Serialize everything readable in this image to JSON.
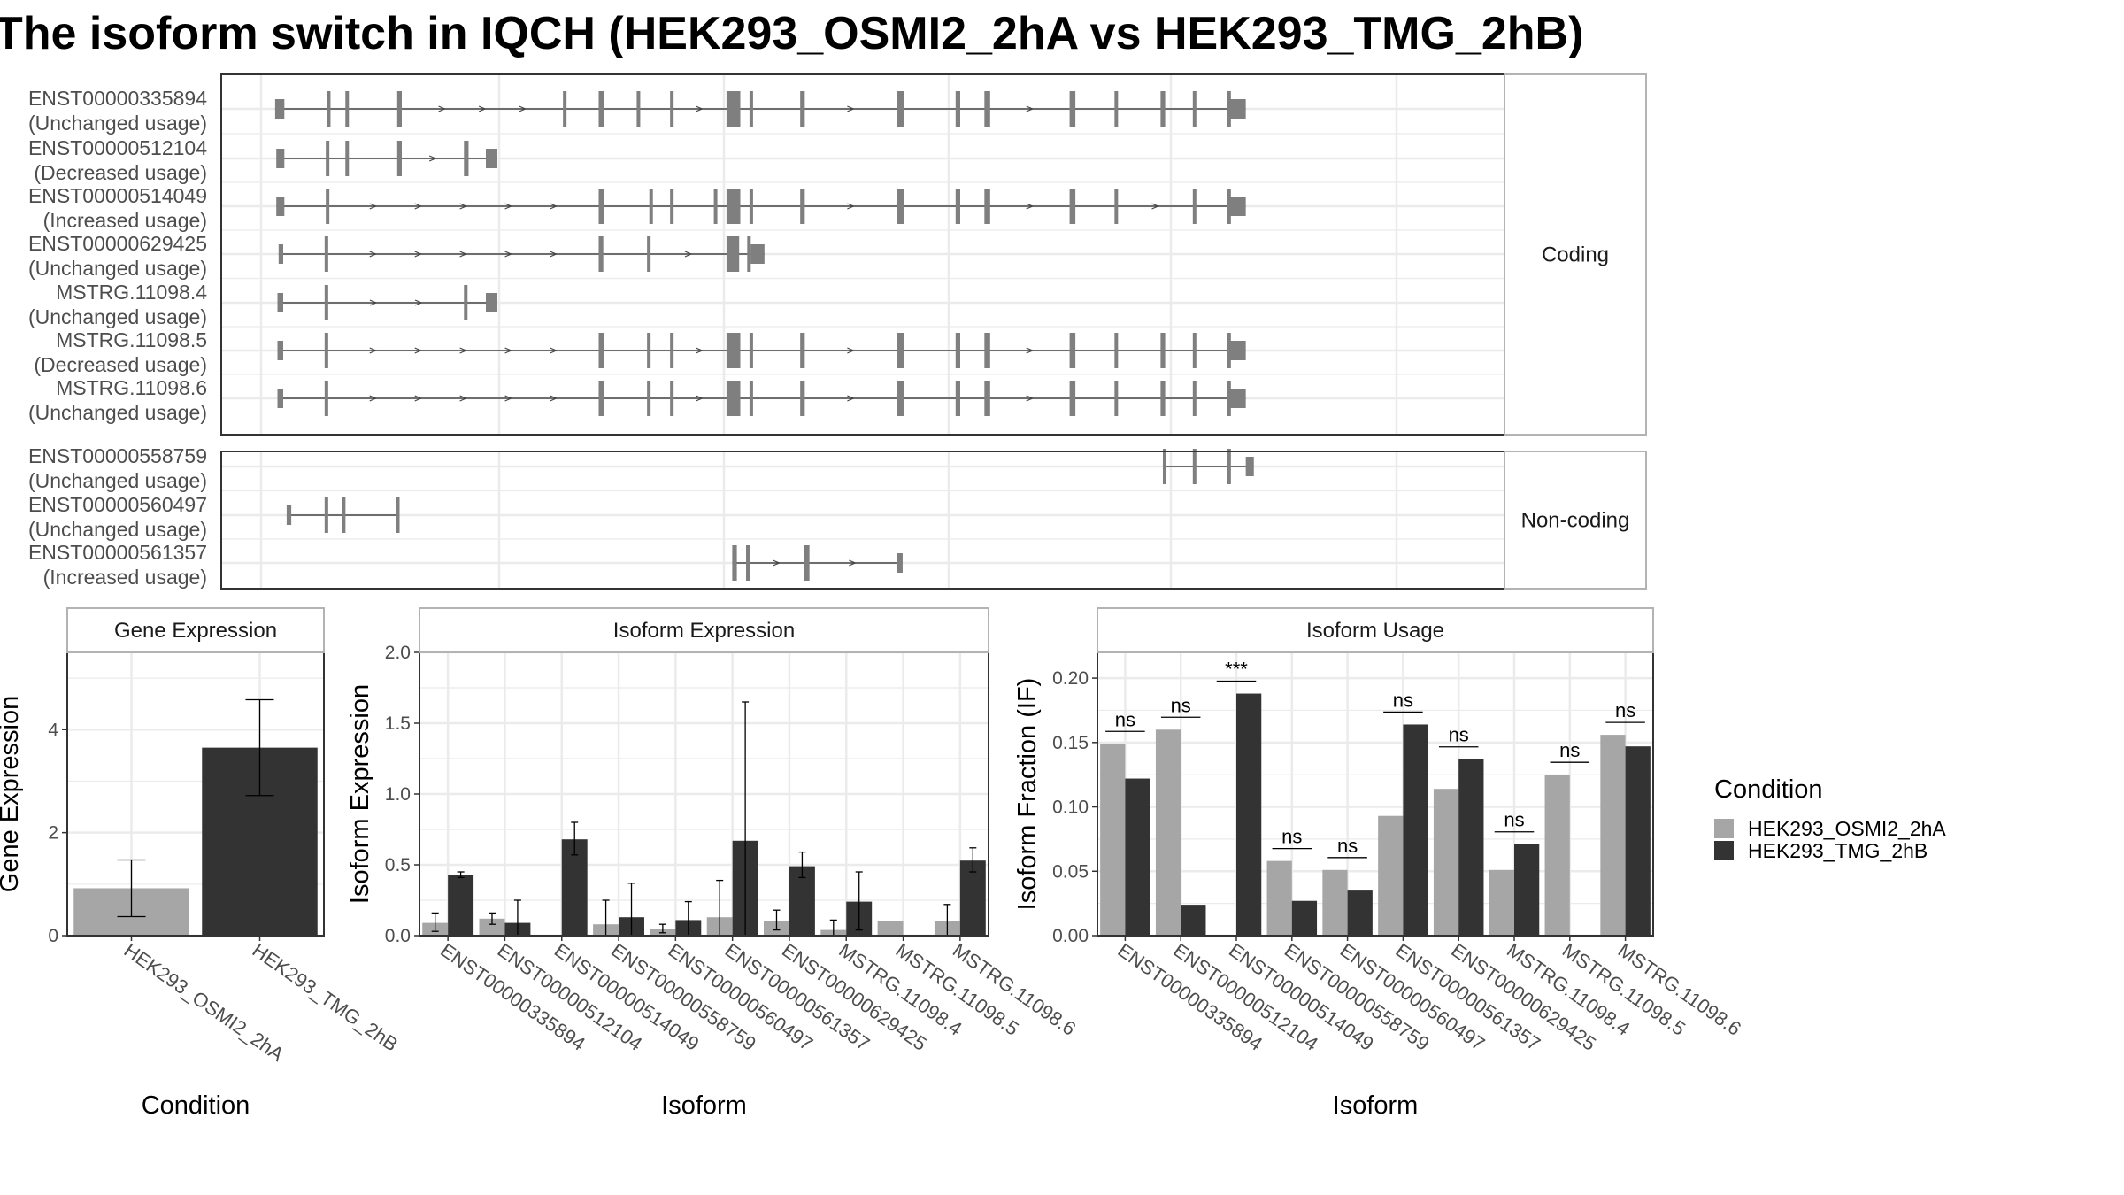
{
  "title": "The isoform switch in IQCH (HEK293_OSMI2_2hA vs HEK293_TMG_2hB)",
  "colors": {
    "condition_a": "#a6a6a6",
    "condition_b": "#333333",
    "structure": "#7f7f7f",
    "panel_border": "#333333",
    "strip_border": "#b3b3b3",
    "grid": "#ebebeb"
  },
  "structure_plot": {
    "x_range": [
      0,
      1000
    ],
    "groups": [
      {
        "label": "Coding",
        "transcripts": [
          {
            "id": "ENST00000335894",
            "usage": "(Unchanged usage)",
            "exons": [
              [
                3,
                11,
                1
              ],
              [
                48,
                50,
                0
              ],
              [
                64,
                66,
                0
              ],
              [
                109,
                113,
                0
              ],
              [
                253,
                256,
                0
              ],
              [
                284,
                289,
                0
              ],
              [
                317,
                320,
                0
              ],
              [
                346,
                348,
                0
              ],
              [
                395,
                407,
                0
              ],
              [
                415,
                418,
                0
              ],
              [
                459,
                463,
                0
              ],
              [
                543,
                549,
                0
              ],
              [
                594,
                598,
                0
              ],
              [
                619,
                624,
                0
              ],
              [
                693,
                698,
                0
              ],
              [
                732,
                735,
                0
              ],
              [
                772,
                776,
                0
              ],
              [
                800,
                803,
                0
              ],
              [
                830,
                833,
                0
              ],
              [
                832,
                846,
                1
              ]
            ]
          },
          {
            "id": "ENST00000512104",
            "usage": "(Decreased usage)",
            "exons": [
              [
                4,
                11,
                1
              ],
              [
                47,
                49,
                0
              ],
              [
                64,
                66,
                0
              ],
              [
                109,
                113,
                0
              ],
              [
                167,
                171,
                0
              ],
              [
                186,
                196,
                1
              ]
            ]
          },
          {
            "id": "ENST00000514049",
            "usage": "(Increased usage)",
            "exons": [
              [
                4,
                11,
                1
              ],
              [
                47,
                49,
                0
              ],
              [
                284,
                289,
                0
              ],
              [
                328,
                330,
                0
              ],
              [
                346,
                348,
                0
              ],
              [
                384,
                387,
                0
              ],
              [
                395,
                407,
                0
              ],
              [
                415,
                418,
                0
              ],
              [
                459,
                463,
                0
              ],
              [
                543,
                549,
                0
              ],
              [
                594,
                598,
                0
              ],
              [
                619,
                624,
                0
              ],
              [
                693,
                698,
                0
              ],
              [
                732,
                735,
                0
              ],
              [
                800,
                803,
                0
              ],
              [
                830,
                833,
                0
              ],
              [
                832,
                846,
                1
              ]
            ]
          },
          {
            "id": "ENST00000629425",
            "usage": "(Unchanged usage)",
            "exons": [
              [
                6,
                10,
                1
              ],
              [
                46,
                49,
                0
              ],
              [
                284,
                288,
                0
              ],
              [
                326,
                329,
                0
              ],
              [
                395,
                406,
                0
              ],
              [
                413,
                416,
                0
              ],
              [
                416,
                428,
                1
              ]
            ]
          },
          {
            "id": "MSTRG.11098.4",
            "usage": "(Unchanged usage)",
            "exons": [
              [
                5,
                10,
                1
              ],
              [
                46,
                49,
                0
              ],
              [
                167,
                170,
                0
              ],
              [
                186,
                196,
                1
              ]
            ]
          },
          {
            "id": "MSTRG.11098.5",
            "usage": "(Decreased usage)",
            "exons": [
              [
                5,
                10,
                1
              ],
              [
                46,
                49,
                0
              ],
              [
                284,
                289,
                0
              ],
              [
                326,
                329,
                0
              ],
              [
                346,
                348,
                0
              ],
              [
                395,
                407,
                0
              ],
              [
                415,
                418,
                0
              ],
              [
                459,
                463,
                0
              ],
              [
                543,
                549,
                0
              ],
              [
                594,
                598,
                0
              ],
              [
                619,
                624,
                0
              ],
              [
                693,
                698,
                0
              ],
              [
                732,
                735,
                0
              ],
              [
                772,
                776,
                0
              ],
              [
                800,
                803,
                0
              ],
              [
                830,
                833,
                0
              ],
              [
                832,
                846,
                1
              ]
            ]
          },
          {
            "id": "MSTRG.11098.6",
            "usage": "(Unchanged usage)",
            "exons": [
              [
                5,
                10,
                1
              ],
              [
                46,
                49,
                0
              ],
              [
                284,
                289,
                0
              ],
              [
                326,
                329,
                0
              ],
              [
                346,
                348,
                0
              ],
              [
                395,
                407,
                0
              ],
              [
                415,
                418,
                0
              ],
              [
                459,
                463,
                0
              ],
              [
                543,
                549,
                0
              ],
              [
                594,
                598,
                0
              ],
              [
                619,
                624,
                0
              ],
              [
                693,
                698,
                0
              ],
              [
                732,
                735,
                0
              ],
              [
                772,
                776,
                0
              ],
              [
                800,
                803,
                0
              ],
              [
                830,
                833,
                0
              ],
              [
                832,
                846,
                1
              ]
            ]
          }
        ]
      },
      {
        "label": "Non-coding",
        "transcripts": [
          {
            "id": "ENST00000558759",
            "usage": "(Unchanged usage)",
            "exons": [
              [
                774,
                777,
                0
              ],
              [
                800,
                803,
                0
              ],
              [
                830,
                833,
                0
              ],
              [
                846,
                853,
                1
              ]
            ]
          },
          {
            "id": "ENST00000560497",
            "usage": "(Unchanged usage)",
            "exons": [
              [
                13,
                17,
                1
              ],
              [
                46,
                49,
                0
              ],
              [
                61,
                64,
                0
              ],
              [
                108,
                110,
                0
              ]
            ]
          },
          {
            "id": "ENST00000561357",
            "usage": "(Increased usage)",
            "exons": [
              [
                400,
                404,
                0
              ],
              [
                412,
                415,
                0
              ],
              [
                462,
                464,
                0
              ],
              [
                464,
                466,
                0
              ],
              [
                543,
                548,
                1
              ]
            ]
          }
        ]
      }
    ]
  },
  "chart_data": [
    {
      "type": "bar",
      "title": "Gene Expression",
      "xlabel": "Condition",
      "ylabel": "Gene Expression",
      "ylim": [
        0,
        5.5
      ],
      "yticks": [
        0,
        2,
        4
      ],
      "categories": [
        "HEK293_OSMI2_2hA",
        "HEK293_TMG_2hB"
      ],
      "values": [
        0.92,
        3.65
      ],
      "error_low": [
        0.37,
        2.72
      ],
      "error_high": [
        1.47,
        4.58
      ],
      "colors_key": [
        "condition_a",
        "condition_b"
      ]
    },
    {
      "type": "bar",
      "title": "Isoform Expression",
      "xlabel": "Isoform",
      "ylabel": "Isoform Expression",
      "ylim": [
        0,
        2.0
      ],
      "yticks": [
        0.0,
        0.5,
        1.0,
        1.5,
        2.0
      ],
      "ytick_labels": [
        "0.0",
        "0.5",
        "1.0",
        "1.5",
        "2.0"
      ],
      "categories": [
        "ENST00000335894",
        "ENST00000512104",
        "ENST00000514049",
        "ENST00000558759",
        "ENST00000560497",
        "ENST00000561357",
        "ENST00000629425",
        "MSTRG.11098.4",
        "MSTRG.11098.5",
        "MSTRG.11098.6"
      ],
      "series": [
        {
          "name": "HEK293_OSMI2_2hA",
          "values": [
            0.09,
            0.12,
            0.0,
            0.08,
            0.05,
            0.13,
            0.1,
            0.04,
            0.1,
            0.1
          ],
          "error_low": [
            0.03,
            0.08,
            0.0,
            0.0,
            0.02,
            0.0,
            0.04,
            0.0,
            0.0,
            0.0
          ],
          "error_high": [
            0.16,
            0.16,
            0.0,
            0.25,
            0.08,
            0.39,
            0.18,
            0.11,
            0.0,
            0.22
          ]
        },
        {
          "name": "HEK293_TMG_2hB",
          "values": [
            0.43,
            0.09,
            0.68,
            0.13,
            0.11,
            0.67,
            0.49,
            0.24,
            0.0,
            0.53
          ],
          "error_low": [
            0.41,
            0.0,
            0.57,
            0.0,
            0.0,
            0.0,
            0.41,
            0.04,
            0.0,
            0.45
          ],
          "error_high": [
            0.45,
            0.25,
            0.8,
            0.37,
            0.24,
            1.65,
            0.59,
            0.45,
            0.0,
            0.62
          ]
        }
      ]
    },
    {
      "type": "bar",
      "title": "Isoform Usage",
      "xlabel": "Isoform",
      "ylabel": "Isoform Fraction (IF)",
      "ylim": [
        0,
        0.22
      ],
      "yticks": [
        0.0,
        0.05,
        0.1,
        0.15,
        0.2
      ],
      "ytick_labels": [
        "0.00",
        "0.05",
        "0.10",
        "0.15",
        "0.20"
      ],
      "categories": [
        "ENST00000335894",
        "ENST00000512104",
        "ENST00000514049",
        "ENST00000558759",
        "ENST00000560497",
        "ENST00000561357",
        "ENST00000629425",
        "MSTRG.11098.4",
        "MSTRG.11098.5",
        "MSTRG.11098.6"
      ],
      "series": [
        {
          "name": "HEK293_OSMI2_2hA",
          "values": [
            0.149,
            0.16,
            0.0,
            0.058,
            0.051,
            0.093,
            0.114,
            0.051,
            0.125,
            0.156
          ]
        },
        {
          "name": "HEK293_TMG_2hB",
          "values": [
            0.122,
            0.024,
            0.188,
            0.027,
            0.035,
            0.164,
            0.137,
            0.071,
            0.0,
            0.147
          ]
        }
      ],
      "significance": [
        "ns",
        "ns",
        "***",
        "ns",
        "ns",
        "ns",
        "ns",
        "ns",
        "ns",
        "ns"
      ]
    }
  ],
  "legend": {
    "title": "Condition",
    "items": [
      "HEK293_OSMI2_2hA",
      "HEK293_TMG_2hB"
    ]
  }
}
